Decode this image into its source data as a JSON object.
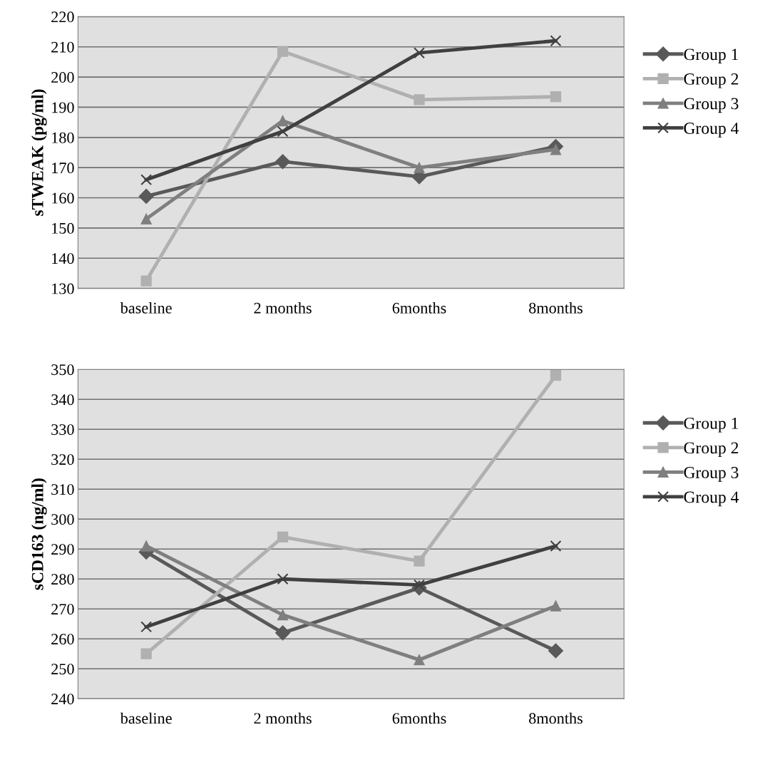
{
  "chart_data": [
    {
      "type": "line",
      "ylabel": "sTWEAK (pg/ml)",
      "categories": [
        "baseline",
        "2 months",
        "6months",
        "8months"
      ],
      "ylim": [
        130,
        220
      ],
      "yticks": [
        130,
        140,
        150,
        160,
        170,
        180,
        190,
        200,
        210,
        220
      ],
      "grid": "y",
      "legend": "right",
      "series": [
        {
          "name": "Group 1",
          "color": "#595959",
          "marker": "diamond",
          "values": [
            160.5,
            172,
            167,
            177
          ]
        },
        {
          "name": "Group 2",
          "color": "#b0b0b0",
          "marker": "square",
          "values": [
            132.5,
            208.5,
            192.5,
            193.5
          ]
        },
        {
          "name": "Group 3",
          "color": "#7f7f7f",
          "marker": "triangle",
          "values": [
            153,
            185.5,
            170,
            176
          ]
        },
        {
          "name": "Group 4",
          "color": "#404040",
          "marker": "cross",
          "values": [
            166,
            182,
            208,
            212
          ]
        }
      ]
    },
    {
      "type": "line",
      "ylabel": "sCD163 (ng/ml)",
      "categories": [
        "baseline",
        "2 months",
        "6months",
        "8months"
      ],
      "ylim": [
        240,
        350
      ],
      "yticks": [
        240,
        250,
        260,
        270,
        280,
        290,
        300,
        310,
        320,
        330,
        340,
        350
      ],
      "grid": "y",
      "legend": "right",
      "series": [
        {
          "name": "Group 1",
          "color": "#595959",
          "marker": "diamond",
          "values": [
            289,
            262,
            277,
            256
          ]
        },
        {
          "name": "Group 2",
          "color": "#b0b0b0",
          "marker": "square",
          "values": [
            255,
            294,
            286,
            348
          ]
        },
        {
          "name": "Group 3",
          "color": "#7f7f7f",
          "marker": "triangle",
          "values": [
            291,
            268,
            253,
            271
          ]
        },
        {
          "name": "Group 4",
          "color": "#404040",
          "marker": "cross",
          "values": [
            264,
            280,
            278,
            291
          ]
        }
      ]
    }
  ]
}
